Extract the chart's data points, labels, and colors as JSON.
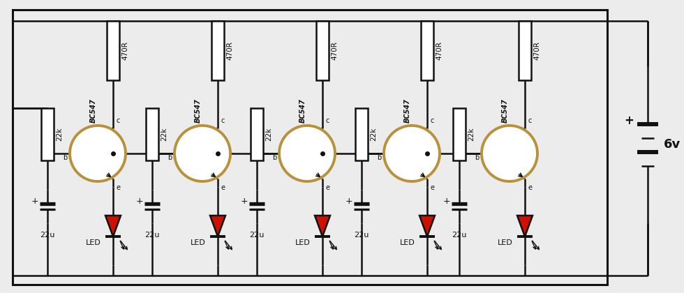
{
  "bg_color": "#ececec",
  "line_color": "#111111",
  "comp_fill": "#ffffff",
  "transistor_ring": "#b8923a",
  "led_fill": "#cc1100",
  "battery_label": "6v",
  "transistor_label": "BC547",
  "res_top_label": "470R",
  "res_side_label": "22k",
  "cap_label": "22u",
  "led_label": "LED",
  "num_stages": 5,
  "figw": 9.8,
  "figh": 4.2,
  "dpi": 100
}
